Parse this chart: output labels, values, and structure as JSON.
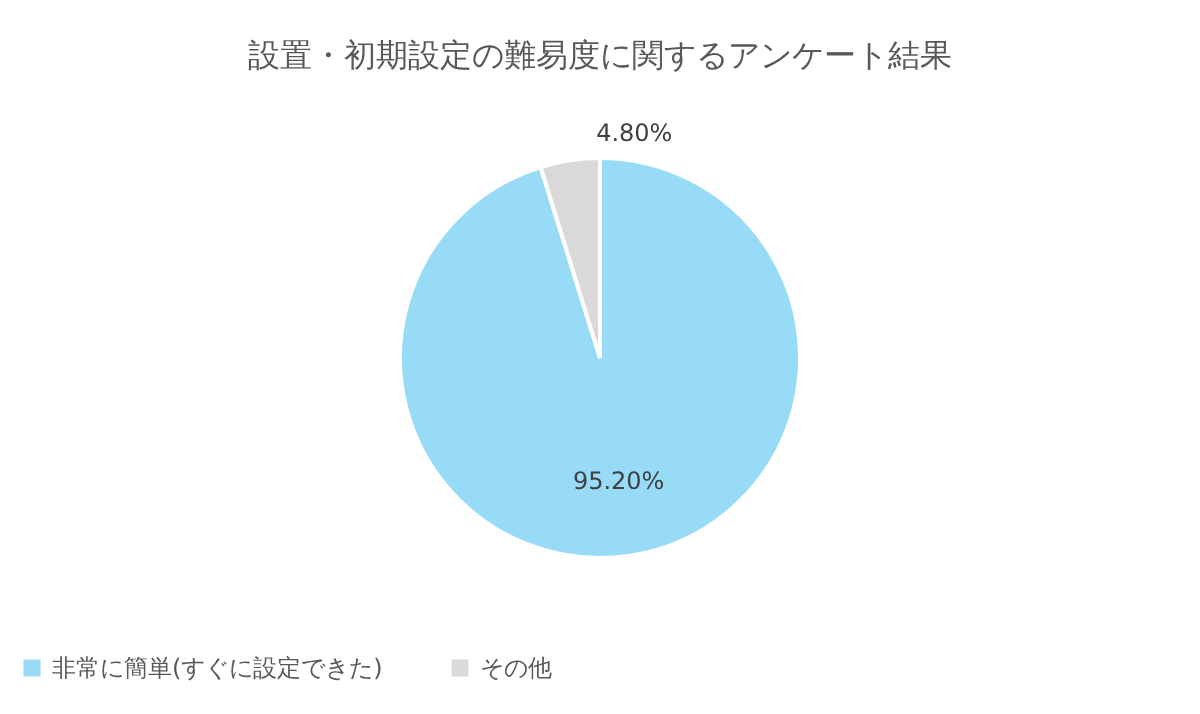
{
  "chart_data": {
    "type": "pie",
    "title": "設置・初期設定の難易度に関するアンケート結果",
    "categories": [
      "非常に簡単(すぐに設定できた)",
      "その他"
    ],
    "values": [
      95.2,
      4.8
    ],
    "colors": [
      "#97dbf7",
      "#d9d9d9"
    ],
    "value_labels": [
      "95.20%",
      "4.80%"
    ],
    "legend": "bottom"
  }
}
